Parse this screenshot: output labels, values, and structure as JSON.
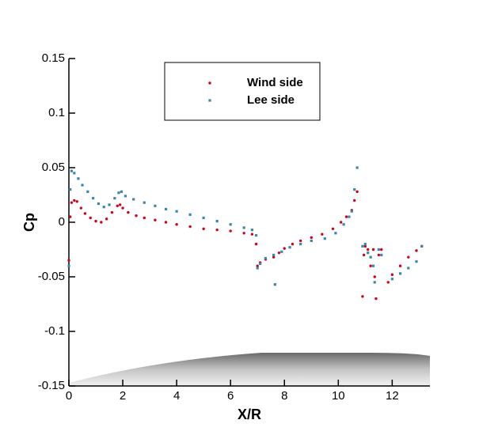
{
  "chart_data": {
    "type": "scatter",
    "xlabel": "X/R",
    "ylabel": "Cp",
    "xlim": [
      0,
      13.4
    ],
    "ylim": [
      -0.15,
      0.15
    ],
    "xticks": [
      0,
      2,
      4,
      6,
      8,
      10,
      12
    ],
    "yticks": [
      -0.15,
      -0.1,
      -0.05,
      0,
      0.05,
      0.1,
      0.15
    ],
    "series": [
      {
        "name": "Wind side",
        "color": "#d0021b",
        "marker": "circle",
        "x": [
          0,
          0.05,
          0.1,
          0.2,
          0.3,
          0.45,
          0.6,
          0.8,
          1.0,
          1.2,
          1.4,
          1.6,
          1.8,
          1.9,
          2.0,
          2.2,
          2.5,
          2.8,
          3.2,
          3.6,
          4.0,
          4.5,
          5.0,
          5.5,
          6.0,
          6.5,
          6.8,
          6.95,
          7.0,
          7.1,
          7.3,
          7.6,
          7.8,
          8.0,
          8.3,
          8.6,
          9.0,
          9.4,
          9.8,
          10.1,
          10.3,
          10.5,
          10.6,
          10.7,
          10.9,
          10.95,
          11.0,
          11.1,
          11.2,
          11.3,
          11.35,
          11.4,
          11.5,
          11.6,
          11.85,
          12.0,
          12.3,
          12.6,
          12.9,
          13.1
        ],
        "y": [
          -0.035,
          0.005,
          0.018,
          0.02,
          0.019,
          0.013,
          0.008,
          0.004,
          0.001,
          0.0,
          0.003,
          0.009,
          0.015,
          0.016,
          0.013,
          0.009,
          0.006,
          0.004,
          0.002,
          0.0,
          -0.002,
          -0.004,
          -0.006,
          -0.007,
          -0.008,
          -0.01,
          -0.011,
          -0.02,
          -0.04,
          -0.037,
          -0.034,
          -0.032,
          -0.028,
          -0.024,
          -0.02,
          -0.017,
          -0.014,
          -0.011,
          -0.006,
          0.0,
          0.005,
          0.011,
          0.02,
          0.028,
          -0.068,
          -0.03,
          -0.022,
          -0.025,
          -0.04,
          -0.025,
          -0.05,
          -0.07,
          -0.03,
          -0.025,
          -0.055,
          -0.048,
          -0.04,
          -0.032,
          -0.026,
          -0.022
        ]
      },
      {
        "name": "Lee side",
        "color": "#3a86b0",
        "marker": "square",
        "x": [
          0,
          0.05,
          0.1,
          0.2,
          0.35,
          0.5,
          0.7,
          0.9,
          1.1,
          1.3,
          1.5,
          1.7,
          1.85,
          1.95,
          2.1,
          2.4,
          2.8,
          3.2,
          3.6,
          4.0,
          4.5,
          5.0,
          5.5,
          6.0,
          6.5,
          6.8,
          6.95,
          7.0,
          7.1,
          7.3,
          7.6,
          7.65,
          7.9,
          8.2,
          8.6,
          9.0,
          9.5,
          9.9,
          10.2,
          10.4,
          10.5,
          10.6,
          10.7,
          10.9,
          11.0,
          11.1,
          11.2,
          11.3,
          11.35,
          11.5,
          11.6,
          12.0,
          12.3,
          12.6,
          12.9,
          13.1
        ],
        "y": [
          -0.04,
          0.03,
          0.047,
          0.045,
          0.04,
          0.034,
          0.028,
          0.022,
          0.017,
          0.014,
          0.016,
          0.022,
          0.027,
          0.028,
          0.024,
          0.021,
          0.018,
          0.015,
          0.012,
          0.01,
          0.007,
          0.004,
          0.001,
          -0.002,
          -0.005,
          -0.007,
          -0.012,
          -0.042,
          -0.038,
          -0.033,
          -0.03,
          -0.057,
          -0.027,
          -0.023,
          -0.02,
          -0.017,
          -0.015,
          -0.01,
          -0.002,
          0.005,
          0.01,
          0.03,
          0.05,
          -0.022,
          -0.02,
          -0.028,
          -0.032,
          -0.04,
          -0.055,
          -0.025,
          -0.03,
          -0.052,
          -0.047,
          -0.042,
          -0.036,
          -0.022
        ]
      }
    ]
  }
}
